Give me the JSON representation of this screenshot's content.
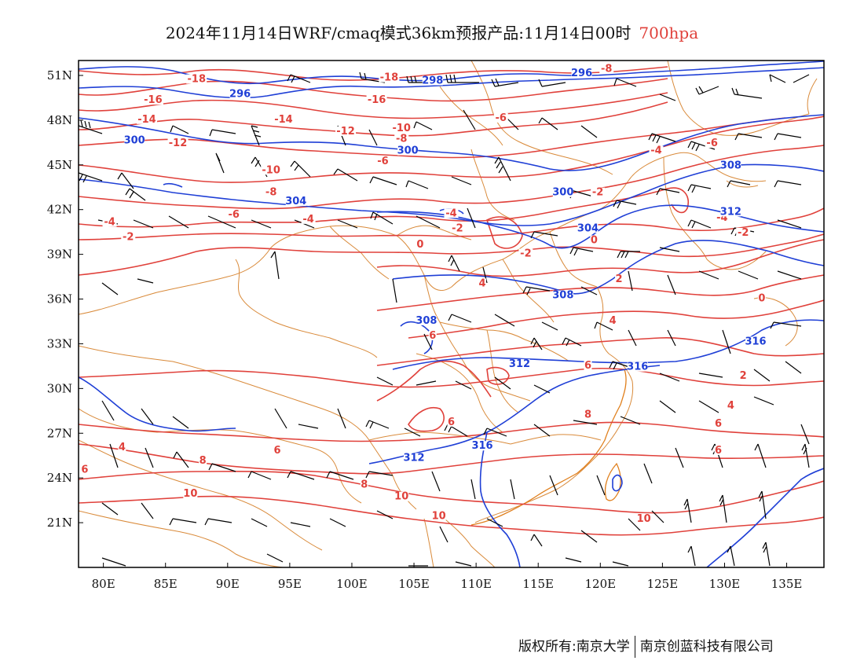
{
  "title": {
    "main": "2024年11月14日WRF/cmaq模式36km预报产品:11月14日00时",
    "level": "700hpa"
  },
  "footer": {
    "copyright": "版权所有:南京大学",
    "company": "南京创蓝科技有限公司"
  },
  "colors": {
    "temperature": "#e0413b",
    "geopotential": "#1f3fd6",
    "borders": "#d98a3a",
    "wind": "#000000"
  },
  "axes": {
    "lon_labels": [
      "80E",
      "85E",
      "90E",
      "95E",
      "100E",
      "105E",
      "110E",
      "115E",
      "120E",
      "125E",
      "130E",
      "135E"
    ],
    "lat_labels": [
      "51N",
      "48N",
      "45N",
      "42N",
      "39N",
      "36N",
      "33N",
      "30N",
      "27N",
      "24N",
      "21N"
    ]
  },
  "isolines": {
    "temperature_labels": [
      {
        "text": "-18",
        "lon": 87.5,
        "lat": 50.6
      },
      {
        "text": "-16",
        "lon": 84.0,
        "lat": 49.2
      },
      {
        "text": "-16",
        "lon": 102.0,
        "lat": 49.2
      },
      {
        "text": "-18",
        "lon": 103.0,
        "lat": 50.7
      },
      {
        "text": "-14",
        "lon": 83.5,
        "lat": 47.9
      },
      {
        "text": "-14",
        "lon": 94.5,
        "lat": 47.9
      },
      {
        "text": "-12",
        "lon": 86.0,
        "lat": 46.3
      },
      {
        "text": "-12",
        "lon": 99.5,
        "lat": 47.1
      },
      {
        "text": "-10",
        "lon": 104.0,
        "lat": 47.3
      },
      {
        "text": "-8",
        "lon": 104.0,
        "lat": 46.6
      },
      {
        "text": "-10",
        "lon": 93.5,
        "lat": 44.5
      },
      {
        "text": "-6",
        "lon": 102.5,
        "lat": 45.1
      },
      {
        "text": "-8",
        "lon": 93.5,
        "lat": 43.0
      },
      {
        "text": "-6",
        "lon": 90.5,
        "lat": 41.5
      },
      {
        "text": "-4",
        "lon": 96.5,
        "lat": 41.2
      },
      {
        "text": "-4",
        "lon": 80.5,
        "lat": 41.0
      },
      {
        "text": "-2",
        "lon": 82.0,
        "lat": 40.0
      },
      {
        "text": "-4",
        "lon": 108.0,
        "lat": 41.6
      },
      {
        "text": "-2",
        "lon": 108.5,
        "lat": 40.6
      },
      {
        "text": "0",
        "lon": 105.5,
        "lat": 39.5
      },
      {
        "text": "-2",
        "lon": 114.0,
        "lat": 38.9
      },
      {
        "text": "0",
        "lon": 119.5,
        "lat": 39.8
      },
      {
        "text": "-2",
        "lon": 119.8,
        "lat": 43.0
      },
      {
        "text": "-4",
        "lon": 124.5,
        "lat": 45.8
      },
      {
        "text": "-6",
        "lon": 129.0,
        "lat": 46.3
      },
      {
        "text": "-4",
        "lon": 129.8,
        "lat": 41.3
      },
      {
        "text": "-2",
        "lon": 131.5,
        "lat": 40.3
      },
      {
        "text": "-6",
        "lon": 112.0,
        "lat": 48.0
      },
      {
        "text": "-8",
        "lon": 120.5,
        "lat": 51.3
      },
      {
        "text": "2",
        "lon": 121.5,
        "lat": 37.2
      },
      {
        "text": "0",
        "lon": 133.0,
        "lat": 35.9
      },
      {
        "text": "4",
        "lon": 110.5,
        "lat": 36.9
      },
      {
        "text": "4",
        "lon": 121.0,
        "lat": 34.4
      },
      {
        "text": "6",
        "lon": 106.5,
        "lat": 33.4
      },
      {
        "text": "6",
        "lon": 119.0,
        "lat": 31.4
      },
      {
        "text": "2",
        "lon": 131.5,
        "lat": 30.7
      },
      {
        "text": "4",
        "lon": 130.5,
        "lat": 28.7
      },
      {
        "text": "6",
        "lon": 129.5,
        "lat": 27.5
      },
      {
        "text": "6",
        "lon": 129.5,
        "lat": 25.7
      },
      {
        "text": "6",
        "lon": 108.0,
        "lat": 27.6
      },
      {
        "text": "8",
        "lon": 119.0,
        "lat": 28.1
      },
      {
        "text": "6",
        "lon": 94.0,
        "lat": 25.7
      },
      {
        "text": "8",
        "lon": 88.0,
        "lat": 25.0
      },
      {
        "text": "4",
        "lon": 81.5,
        "lat": 25.9
      },
      {
        "text": "6",
        "lon": 78.5,
        "lat": 24.4
      },
      {
        "text": "10",
        "lon": 87.0,
        "lat": 22.8
      },
      {
        "text": "8",
        "lon": 101.0,
        "lat": 23.4
      },
      {
        "text": "10",
        "lon": 104.0,
        "lat": 22.6
      },
      {
        "text": "10",
        "lon": 107.0,
        "lat": 21.3
      },
      {
        "text": "10",
        "lon": 123.5,
        "lat": 21.1
      }
    ],
    "geopotential_labels": [
      {
        "text": "296",
        "lon": 91.0,
        "lat": 49.6
      },
      {
        "text": "298",
        "lon": 106.5,
        "lat": 50.5
      },
      {
        "text": "296",
        "lon": 118.5,
        "lat": 51.0
      },
      {
        "text": "300",
        "lon": 82.5,
        "lat": 46.5
      },
      {
        "text": "300",
        "lon": 104.5,
        "lat": 45.8
      },
      {
        "text": "300",
        "lon": 117.0,
        "lat": 43.0
      },
      {
        "text": "304",
        "lon": 95.5,
        "lat": 42.4
      },
      {
        "text": "304",
        "lon": 119.0,
        "lat": 40.6
      },
      {
        "text": "308",
        "lon": 130.5,
        "lat": 44.8
      },
      {
        "text": "308",
        "lon": 117.0,
        "lat": 36.1
      },
      {
        "text": "308",
        "lon": 106.0,
        "lat": 34.4
      },
      {
        "text": "312",
        "lon": 130.5,
        "lat": 41.7
      },
      {
        "text": "312",
        "lon": 113.5,
        "lat": 31.5
      },
      {
        "text": "312",
        "lon": 105.0,
        "lat": 25.2
      },
      {
        "text": "316",
        "lon": 123.0,
        "lat": 31.3
      },
      {
        "text": "316",
        "lon": 132.5,
        "lat": 33.0
      },
      {
        "text": "316",
        "lon": 110.5,
        "lat": 26.0
      }
    ]
  }
}
